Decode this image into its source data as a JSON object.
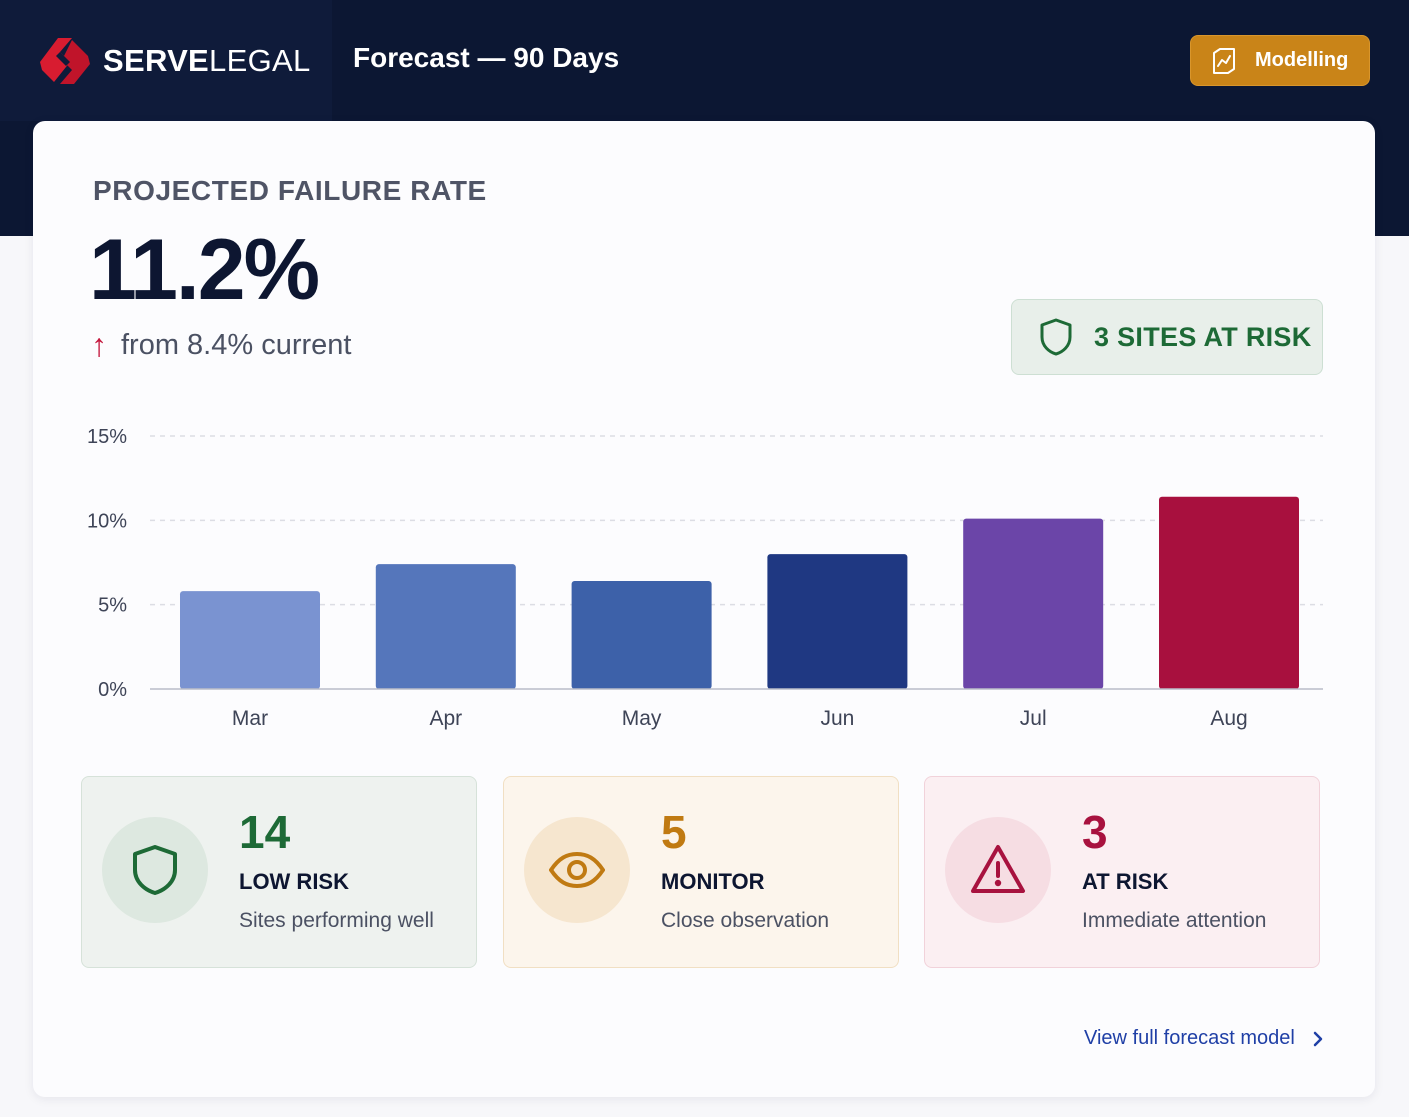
{
  "header": {
    "brand_bold": "SERVE",
    "brand_light": "LEGAL",
    "page_title": "Forecast — 90 Days",
    "mode_button_label": "Modelling"
  },
  "kpi": {
    "label": "PROJECTED FAILURE RATE",
    "value": "11.2%",
    "delta_arrow": "↑",
    "delta_text": "from 8.4% current"
  },
  "risk_pill": {
    "label": "3 SITES AT RISK"
  },
  "chart_data": {
    "type": "bar",
    "categories": [
      "Mar",
      "Apr",
      "May",
      "Jun",
      "Jul",
      "Aug"
    ],
    "values": [
      5.8,
      7.4,
      6.4,
      8.0,
      10.1,
      11.4
    ],
    "colors": [
      "#7a93d1",
      "#5576bb",
      "#3d61a9",
      "#1f3882",
      "#6b45a8",
      "#a8103e"
    ],
    "ylim": [
      0,
      15
    ],
    "yticks": [
      0,
      5,
      10,
      15
    ],
    "ytick_labels": [
      "0%",
      "5%",
      "10%",
      "15%"
    ],
    "grid": true,
    "title": "",
    "xlabel": "",
    "ylabel": ""
  },
  "tiles": [
    {
      "count": "14",
      "name": "LOW RISK",
      "desc": "Sites performing well",
      "icon": "shield-icon"
    },
    {
      "count": "5",
      "name": "MONITOR",
      "desc": "Close observation",
      "icon": "eye-icon"
    },
    {
      "count": "3",
      "name": "AT RISK",
      "desc": "Immediate attention",
      "icon": "warning-icon"
    }
  ],
  "footer": {
    "link_label": "View full forecast model"
  },
  "colors": {
    "header_bg": "#0c1733",
    "accent_orange": "#c98418",
    "green": "#1d6a36",
    "amber": "#c07a12",
    "crimson": "#a8123f",
    "link_blue": "#1f3fa6"
  }
}
